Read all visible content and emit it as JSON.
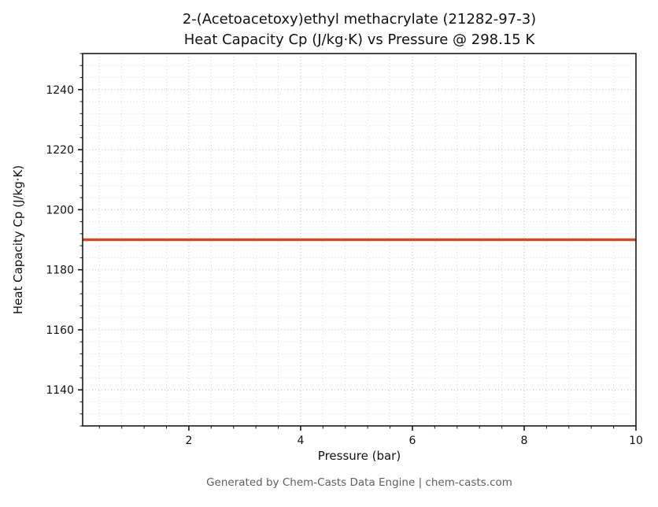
{
  "chart_data": {
    "type": "line",
    "title_line1": "2-(Acetoacetoxy)ethyl methacrylate (21282-97-3)",
    "title_line2": "Heat Capacity Cp (J/kg·K) vs Pressure @ 298.15 K",
    "xlabel": "Pressure (bar)",
    "ylabel": "Heat Capacity Cp (J/kg·K)",
    "footer": "Generated by Chem-Casts Data Engine | chem-casts.com",
    "xlim": [
      0.1,
      10
    ],
    "ylim": [
      1128,
      1252
    ],
    "x_ticks": [
      2,
      4,
      6,
      8,
      10
    ],
    "y_ticks": [
      1140,
      1160,
      1180,
      1200,
      1220,
      1240
    ],
    "x_minor_step": 0.4,
    "y_minor_step": 4,
    "grid": true,
    "legend_position": "none",
    "series": [
      {
        "name": "Heat Capacity Cp",
        "x": [
          0.1,
          10
        ],
        "y": [
          1190,
          1190
        ],
        "color": "#cb4e26"
      }
    ],
    "colors": {
      "line": "#cb4e26",
      "major_grid": "#bbbbbb",
      "minor_grid": "#dadada",
      "spine": "#1a1a1a",
      "tick_text": "#111111",
      "footer_text": "#5f5f5f"
    }
  }
}
